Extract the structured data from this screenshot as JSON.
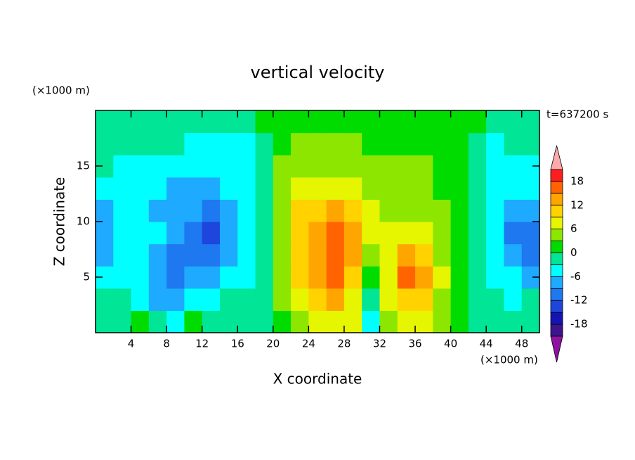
{
  "chart_data": {
    "type": "contour",
    "title": "vertical velocity",
    "xlabel": "X coordinate",
    "ylabel": "Z coordinate",
    "x_unit": "(×1000 m)",
    "y_unit": "(×1000 m)",
    "annotation": "t=637200 s",
    "xlim": [
      0,
      50
    ],
    "ylim": [
      0,
      20
    ],
    "xticks": [
      4,
      8,
      12,
      16,
      20,
      24,
      28,
      32,
      36,
      40,
      44,
      48
    ],
    "yticks": [
      5,
      10,
      15
    ],
    "x": [
      1,
      3,
      5,
      7,
      9,
      11,
      13,
      15,
      17,
      19,
      21,
      23,
      25,
      27,
      29,
      31,
      33,
      35,
      37,
      39,
      41,
      43,
      45,
      47,
      49
    ],
    "y": [
      1,
      3,
      5,
      7,
      9,
      11,
      13,
      15,
      17,
      19
    ],
    "z": [
      [
        -1,
        -1,
        2,
        -1,
        -4,
        2,
        -1,
        -1,
        -1,
        -1,
        1,
        4,
        7,
        8,
        6,
        -4,
        4,
        7,
        6,
        3,
        1,
        -1,
        -1,
        -2,
        -2
      ],
      [
        -2,
        -3,
        -5,
        -8,
        -9,
        -5,
        -4,
        -3,
        -2,
        -1,
        3,
        7,
        10,
        12,
        8,
        -3,
        6,
        10,
        9,
        5,
        2,
        -2,
        -3,
        -4,
        -3
      ],
      [
        -6,
        -5,
        -6,
        -8,
        -10,
        -9,
        -7,
        -5,
        -4,
        -1,
        3,
        9,
        13,
        17,
        11,
        2,
        8,
        16,
        12,
        6,
        2,
        -2,
        -5,
        -5,
        -8
      ],
      [
        -9,
        -5,
        -6,
        -8,
        -10,
        -12,
        -11,
        -7,
        -4,
        -1,
        4,
        10,
        14,
        17,
        13,
        4,
        8,
        12,
        10,
        5,
        2,
        -1,
        -5,
        -8,
        -10
      ],
      [
        -9,
        -5,
        -5,
        -6,
        -9,
        -11,
        -13,
        -8,
        -5,
        -1,
        5,
        10,
        14,
        15,
        12,
        7,
        7,
        8,
        7,
        4,
        2,
        -1,
        -5,
        -10,
        -11
      ],
      [
        -8,
        -5,
        -5,
        -8,
        -7,
        -8,
        -10,
        -7,
        -5,
        -1,
        5,
        9,
        11,
        13,
        11,
        7,
        5,
        5,
        5,
        4,
        1,
        -2,
        -4,
        -9,
        -8
      ],
      [
        -5,
        -5,
        -5,
        -5,
        -7,
        -7,
        -7,
        -5,
        -4,
        -1,
        4,
        7,
        8,
        8,
        7,
        4,
        4,
        4,
        4,
        2,
        1,
        -2,
        -4,
        -5,
        -5
      ],
      [
        -2,
        -4,
        -4,
        -4,
        -5,
        -4,
        -4,
        -5,
        -4,
        -1,
        4,
        4,
        5,
        5,
        4,
        4,
        4,
        4,
        4,
        1,
        1,
        -1,
        -4,
        -4,
        -4
      ],
      [
        -1,
        -1,
        -1,
        -1,
        -1,
        -4,
        -4,
        -4,
        -4,
        -1,
        1,
        4,
        4,
        4,
        4,
        1,
        1,
        1,
        1,
        1,
        1,
        -1,
        -4,
        -1,
        -1
      ],
      [
        -1,
        -1,
        -1,
        -1,
        -1,
        -1,
        -1,
        -1,
        -1,
        1,
        1,
        1,
        1,
        1,
        1,
        1,
        1,
        1,
        1,
        1,
        1,
        1,
        -1,
        -1,
        -1
      ]
    ],
    "levels": [
      -21,
      -18,
      -15,
      -12,
      -9,
      -6,
      -3,
      0,
      3,
      6,
      9,
      12,
      15,
      18,
      21
    ],
    "colors": [
      "#3c148c",
      "#1414b4",
      "#1e46dc",
      "#1e78f0",
      "#1eaaff",
      "#00ffff",
      "#00e596",
      "#00dc00",
      "#8ce600",
      "#e6f500",
      "#ffd200",
      "#ffa500",
      "#ff6400",
      "#ff1e1e"
    ],
    "under_color": "#8c14a0",
    "over_color": "#ffaaaa",
    "colorbar_ticks": [
      18,
      12,
      6,
      0,
      -6,
      -12,
      -18
    ]
  }
}
